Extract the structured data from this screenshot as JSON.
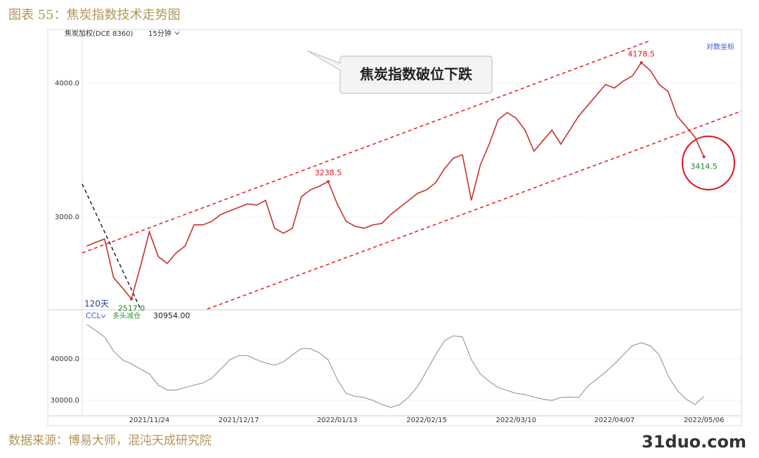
{
  "title": "图表 55：焦炭指数技术走势图",
  "source": "数据来源：博易大师，混沌天成研究院",
  "watermark": "31duo.com",
  "chart_data": {
    "type": "line",
    "instrument": "焦炭加权(DCE 8360)",
    "period": "15分钟",
    "scale_label": "对数坐标",
    "annotation": "焦炭指数破位下跌",
    "window_label": "120天",
    "indicator_status": "多头减仓",
    "log_scale": true,
    "grid": true,
    "categories": [
      null,
      null,
      null,
      null,
      null,
      null,
      null,
      "2021/11/24",
      null,
      null,
      null,
      null,
      null,
      null,
      null,
      null,
      null,
      "2021/12/17",
      null,
      null,
      null,
      null,
      null,
      null,
      null,
      null,
      null,
      null,
      "2022/01/13",
      null,
      null,
      null,
      null,
      null,
      null,
      null,
      null,
      null,
      "2022/02/15",
      null,
      null,
      null,
      null,
      null,
      null,
      null,
      null,
      null,
      "2022/03/10",
      null,
      null,
      null,
      null,
      null,
      null,
      null,
      null,
      null,
      null,
      "2022/04/07",
      null,
      null,
      null,
      null,
      null,
      null,
      null,
      null,
      null,
      "2022/05/06"
    ],
    "series": [
      {
        "color": "#c8322d",
        "values": [
          2820,
          2842,
          2863,
          2635,
          2577,
          2517,
          2696,
          2907,
          2757,
          2716,
          2778,
          2820,
          2951,
          2951,
          2973,
          3018,
          3041,
          3064,
          3087,
          3078,
          3110,
          2929,
          2898,
          2929,
          3134,
          3181,
          3206,
          3238.5,
          3087,
          2973,
          2942,
          2929,
          2951,
          2960,
          3018,
          3064,
          3110,
          3158,
          3181,
          3230,
          3329,
          3405,
          3430,
          3110,
          3354,
          3509,
          3698,
          3755,
          3710,
          3616,
          3456,
          3535,
          3616,
          3509,
          3616,
          3727,
          3812,
          3899,
          3988,
          3958,
          4018,
          4061,
          4178.5,
          4110,
          3988,
          3928,
          3727,
          3644,
          3562,
          3414.5
        ],
        "value_labels": [
          null,
          null,
          null,
          null,
          null,
          "2517.0",
          null,
          null,
          null,
          null,
          null,
          null,
          null,
          null,
          null,
          null,
          null,
          null,
          null,
          null,
          null,
          null,
          null,
          null,
          null,
          null,
          null,
          "3238.5",
          null,
          null,
          null,
          null,
          null,
          null,
          null,
          null,
          null,
          null,
          null,
          null,
          null,
          null,
          null,
          null,
          null,
          null,
          null,
          null,
          null,
          null,
          null,
          null,
          null,
          null,
          null,
          null,
          null,
          null,
          null,
          null,
          null,
          null,
          "4178.5",
          null,
          null,
          null,
          null,
          null,
          null,
          "3414.5"
        ]
      },
      {
        "name": "CCL",
        "color": "#8a8a8a",
        "axis": "y2",
        "values": [
          48300,
          46900,
          45300,
          41900,
          39800,
          38800,
          37600,
          36400,
          33700,
          32500,
          32500,
          33100,
          33700,
          34200,
          35400,
          37600,
          39800,
          40800,
          40800,
          39800,
          39000,
          38500,
          39300,
          41000,
          42500,
          42500,
          41500,
          39800,
          35100,
          31700,
          31000,
          30700,
          30000,
          29000,
          28300,
          29000,
          30800,
          33400,
          37100,
          41000,
          44400,
          45600,
          45300,
          39800,
          36400,
          34600,
          33100,
          32400,
          31700,
          31400,
          30800,
          30300,
          30000,
          30700,
          30800,
          30700,
          33400,
          35100,
          36800,
          38800,
          41000,
          43200,
          43900,
          43200,
          41000,
          35900,
          32500,
          30300,
          29000,
          30954
        ],
        "value_labels": [
          null,
          null,
          null,
          null,
          null,
          null,
          null,
          null,
          null,
          null,
          null,
          null,
          null,
          null,
          null,
          null,
          null,
          null,
          null,
          null,
          null,
          null,
          null,
          null,
          null,
          null,
          null,
          null,
          null,
          null,
          null,
          null,
          null,
          null,
          null,
          null,
          null,
          null,
          null,
          null,
          null,
          null,
          null,
          null,
          null,
          null,
          null,
          null,
          null,
          null,
          null,
          null,
          null,
          null,
          null,
          null,
          null,
          null,
          null,
          null,
          null,
          null,
          null,
          null,
          null,
          null,
          null,
          null,
          null,
          "30954.00"
        ]
      }
    ],
    "ylim": [
      2463,
      4467
    ],
    "yticks": [
      {
        "value": 3000,
        "label": "3000.0"
      },
      {
        "value": 4000,
        "label": "4000.0"
      }
    ],
    "y2lim": [
      26270,
      51190
    ],
    "y2ticks": [
      {
        "value": 30000,
        "label": "30000.0"
      },
      {
        "value": 40000,
        "label": "40000.0"
      }
    ]
  }
}
